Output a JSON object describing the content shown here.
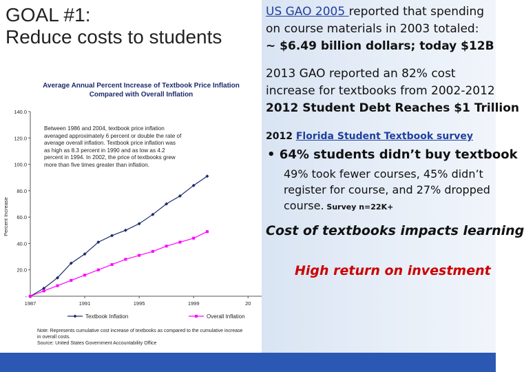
{
  "goal": {
    "line1": "GOAL #1:",
    "line2": "Reduce costs to students"
  },
  "chart": {
    "title_line1": "Average Annual Percent Increase of Textbook Price Inflation",
    "title_line2": "Compared with Overall Inflation",
    "ylabel": "Percent Increase",
    "annotation": [
      "Between 1986 and 2004, textbook price inflation",
      "averaged approximately 6 percent or double the rate of",
      "average overall inflation. Textbook price inflation was",
      "as high as 8.3 percent in 1990 and as low as 4.2",
      "percent in 1994. In 2002, the price of textbooks grew",
      "more than five times greater than inflation."
    ],
    "legend1": "Textbook Inflation",
    "legend2": "Overall Inflation",
    "note_line1": "Note:  Represents cumulative cost increase of textbooks as compared to the cumulative increase",
    "note_line2": "in overall costs.",
    "note_line3": "Source:  United States Government Accountability Office"
  },
  "chart_data": {
    "type": "line",
    "x": [
      1987,
      1988,
      1989,
      1990,
      1991,
      1992,
      1993,
      1994,
      1995,
      1996,
      1997,
      1998,
      1999,
      2000
    ],
    "series": [
      {
        "name": "Textbook Inflation",
        "values": [
          0,
          6,
          14,
          25,
          32,
          41,
          46,
          50,
          55,
          62,
          70,
          76,
          84,
          91
        ]
      },
      {
        "name": "Overall Inflation",
        "values": [
          0,
          4,
          8,
          12,
          16,
          20,
          24,
          28,
          31,
          34,
          38,
          41,
          44,
          49
        ]
      }
    ],
    "xticks": [
      "1987",
      "1991",
      "1995",
      "1999",
      "20"
    ],
    "yticks": [
      "-",
      "20.0",
      "40.0",
      "60.0",
      "80.0",
      "100.0",
      "120.0",
      "140.0"
    ],
    "ylim": [
      0,
      140
    ],
    "xlim": [
      1987,
      2004
    ],
    "colors": {
      "textbook": "#1b2a6b",
      "overall": "#ff00ff"
    }
  },
  "right": {
    "p1_link": "US GAO 2005 ",
    "p1_rest": "reported that spending",
    "p1_line2": "on course materials in 2003 totaled:",
    "p1_line3": "~ $6.49 billion dollars; today $12B",
    "p2_line1": "2013 GAO reported an 82% cost",
    "p2_line2": "increase for textbooks from 2002-2012",
    "p2_line3": "2012 Student Debt Reaches $1 Trillion",
    "p3_year": "2012 ",
    "p3_link": "Florida Student Textbook survey",
    "bullet": "•",
    "p4_line1": "64% students didn’t buy textbook",
    "p4_line2": "49% took fewer courses, 45% didn’t",
    "p4_line3": "register for course, and 27% dropped",
    "p4_line4": "course.",
    "p4_survey": " Survey n=22K+",
    "p5": "Cost of textbooks impacts learning",
    "p6": "High return on investment"
  }
}
